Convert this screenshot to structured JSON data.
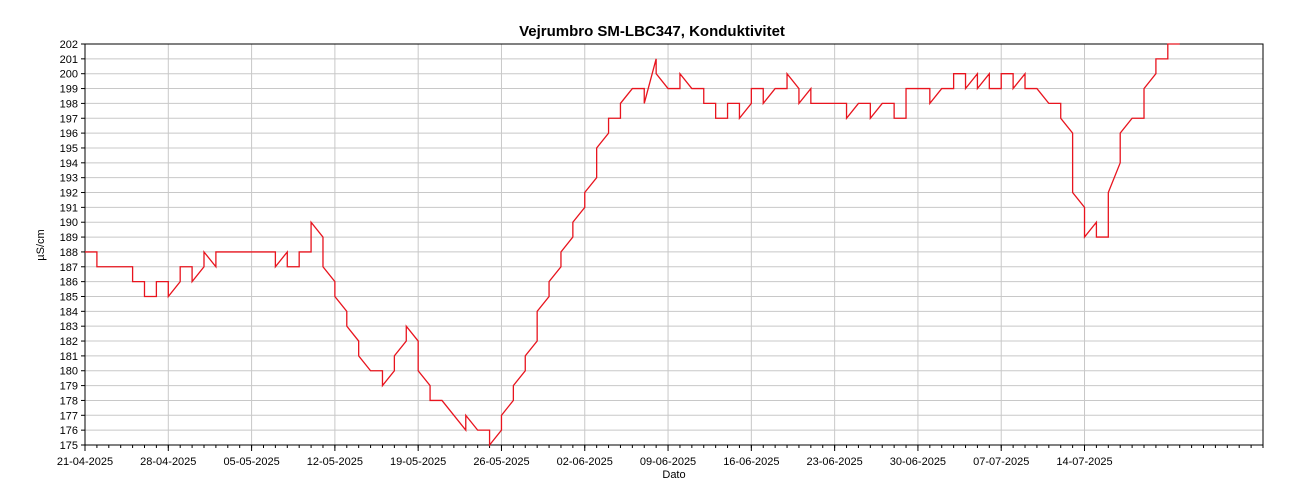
{
  "chart_data": {
    "type": "line",
    "title": "Vejrumbro SM-LBC347, Konduktivitet",
    "xlabel": "Dato",
    "ylabel": "µS/cm",
    "ylim": [
      175,
      202
    ],
    "xlim": [
      "2025-04-21",
      "2025-07-29"
    ],
    "x_ticks": [
      "21-04-2025",
      "28-04-2025",
      "05-05-2025",
      "12-05-2025",
      "19-05-2025",
      "26-05-2025",
      "02-06-2025",
      "09-06-2025",
      "16-06-2025",
      "23-06-2025",
      "30-06-2025",
      "07-07-2025",
      "14-07-2025"
    ],
    "y_ticks": [
      175,
      176,
      177,
      178,
      179,
      180,
      181,
      182,
      183,
      184,
      185,
      186,
      187,
      188,
      189,
      190,
      191,
      192,
      193,
      194,
      195,
      196,
      197,
      198,
      199,
      200,
      201,
      202
    ],
    "grid": true,
    "line_color": "#e8141e",
    "series": [
      {
        "points": [
          [
            "2025-04-21",
            188
          ],
          [
            "2025-04-22",
            188
          ],
          [
            "2025-04-22",
            187
          ],
          [
            "2025-04-24",
            187
          ],
          [
            "2025-04-25",
            187
          ],
          [
            "2025-04-25",
            186
          ],
          [
            "2025-04-26",
            186
          ],
          [
            "2025-04-26",
            185
          ],
          [
            "2025-04-27",
            185
          ],
          [
            "2025-04-27",
            186
          ],
          [
            "2025-04-28",
            186
          ],
          [
            "2025-04-28",
            185
          ],
          [
            "2025-04-29",
            186
          ],
          [
            "2025-04-29",
            187
          ],
          [
            "2025-04-30",
            187
          ],
          [
            "2025-04-30",
            186
          ],
          [
            "2025-05-01",
            187
          ],
          [
            "2025-05-01",
            188
          ],
          [
            "2025-05-02",
            187
          ],
          [
            "2025-05-02",
            188
          ],
          [
            "2025-05-05",
            188
          ],
          [
            "2025-05-07",
            188
          ],
          [
            "2025-05-07",
            187
          ],
          [
            "2025-05-08",
            188
          ],
          [
            "2025-05-08",
            187
          ],
          [
            "2025-05-09",
            187
          ],
          [
            "2025-05-09",
            188
          ],
          [
            "2025-05-10",
            188
          ],
          [
            "2025-05-10",
            190
          ],
          [
            "2025-05-11",
            189
          ],
          [
            "2025-05-11",
            188
          ],
          [
            "2025-05-11",
            187
          ],
          [
            "2025-05-12",
            186
          ],
          [
            "2025-05-12",
            185
          ],
          [
            "2025-05-13",
            184
          ],
          [
            "2025-05-13",
            183
          ],
          [
            "2025-05-14",
            182
          ],
          [
            "2025-05-14",
            181
          ],
          [
            "2025-05-15",
            180
          ],
          [
            "2025-05-16",
            180
          ],
          [
            "2025-05-16",
            179
          ],
          [
            "2025-05-17",
            180
          ],
          [
            "2025-05-17",
            181
          ],
          [
            "2025-05-18",
            182
          ],
          [
            "2025-05-18",
            183
          ],
          [
            "2025-05-19",
            182
          ],
          [
            "2025-05-19",
            181
          ],
          [
            "2025-05-19",
            180
          ],
          [
            "2025-05-20",
            179
          ],
          [
            "2025-05-20",
            178
          ],
          [
            "2025-05-21",
            178
          ],
          [
            "2025-05-22",
            177
          ],
          [
            "2025-05-23",
            176
          ],
          [
            "2025-05-23",
            177
          ],
          [
            "2025-05-24",
            176
          ],
          [
            "2025-05-25",
            176
          ],
          [
            "2025-05-25",
            175
          ],
          [
            "2025-05-26",
            176
          ],
          [
            "2025-05-26",
            177
          ],
          [
            "2025-05-27",
            178
          ],
          [
            "2025-05-27",
            179
          ],
          [
            "2025-05-28",
            180
          ],
          [
            "2025-05-28",
            181
          ],
          [
            "2025-05-29",
            182
          ],
          [
            "2025-05-29",
            183
          ],
          [
            "2025-05-29",
            184
          ],
          [
            "2025-05-30",
            185
          ],
          [
            "2025-05-30",
            186
          ],
          [
            "2025-05-31",
            187
          ],
          [
            "2025-05-31",
            188
          ],
          [
            "2025-06-01",
            189
          ],
          [
            "2025-06-01",
            190
          ],
          [
            "2025-06-02",
            191
          ],
          [
            "2025-06-02",
            192
          ],
          [
            "2025-06-03",
            193
          ],
          [
            "2025-06-03",
            194
          ],
          [
            "2025-06-03",
            195
          ],
          [
            "2025-06-04",
            196
          ],
          [
            "2025-06-04",
            197
          ],
          [
            "2025-06-05",
            197
          ],
          [
            "2025-06-05",
            198
          ],
          [
            "2025-06-06",
            199
          ],
          [
            "2025-06-07",
            199
          ],
          [
            "2025-06-07",
            198
          ],
          [
            "2025-06-08",
            201
          ],
          [
            "2025-06-08",
            200
          ],
          [
            "2025-06-09",
            199
          ],
          [
            "2025-06-10",
            199
          ],
          [
            "2025-06-10",
            200
          ],
          [
            "2025-06-11",
            199
          ],
          [
            "2025-06-12",
            199
          ],
          [
            "2025-06-12",
            198
          ],
          [
            "2025-06-13",
            198
          ],
          [
            "2025-06-13",
            197
          ],
          [
            "2025-06-14",
            197
          ],
          [
            "2025-06-14",
            198
          ],
          [
            "2025-06-15",
            198
          ],
          [
            "2025-06-15",
            197
          ],
          [
            "2025-06-16",
            198
          ],
          [
            "2025-06-16",
            199
          ],
          [
            "2025-06-17",
            199
          ],
          [
            "2025-06-17",
            198
          ],
          [
            "2025-06-18",
            199
          ],
          [
            "2025-06-19",
            199
          ],
          [
            "2025-06-19",
            200
          ],
          [
            "2025-06-20",
            199
          ],
          [
            "2025-06-20",
            198
          ],
          [
            "2025-06-21",
            199
          ],
          [
            "2025-06-21",
            198
          ],
          [
            "2025-06-22",
            198
          ],
          [
            "2025-06-23",
            198
          ],
          [
            "2025-06-24",
            198
          ],
          [
            "2025-06-24",
            197
          ],
          [
            "2025-06-25",
            198
          ],
          [
            "2025-06-26",
            198
          ],
          [
            "2025-06-26",
            197
          ],
          [
            "2025-06-27",
            198
          ],
          [
            "2025-06-28",
            198
          ],
          [
            "2025-06-28",
            197
          ],
          [
            "2025-06-29",
            197
          ],
          [
            "2025-06-29",
            199
          ],
          [
            "2025-06-30",
            199
          ],
          [
            "2025-07-01",
            199
          ],
          [
            "2025-07-01",
            198
          ],
          [
            "2025-07-02",
            199
          ],
          [
            "2025-07-03",
            199
          ],
          [
            "2025-07-03",
            200
          ],
          [
            "2025-07-04",
            200
          ],
          [
            "2025-07-04",
            199
          ],
          [
            "2025-07-05",
            200
          ],
          [
            "2025-07-05",
            199
          ],
          [
            "2025-07-06",
            200
          ],
          [
            "2025-07-06",
            199
          ],
          [
            "2025-07-07",
            199
          ],
          [
            "2025-07-07",
            200
          ],
          [
            "2025-07-08",
            200
          ],
          [
            "2025-07-08",
            199
          ],
          [
            "2025-07-09",
            200
          ],
          [
            "2025-07-09",
            199
          ],
          [
            "2025-07-10",
            199
          ],
          [
            "2025-07-11",
            198
          ],
          [
            "2025-07-12",
            198
          ],
          [
            "2025-07-12",
            197
          ],
          [
            "2025-07-13",
            196
          ],
          [
            "2025-07-13",
            194
          ],
          [
            "2025-07-13",
            192
          ],
          [
            "2025-07-14",
            191
          ],
          [
            "2025-07-14",
            189
          ],
          [
            "2025-07-15",
            190
          ],
          [
            "2025-07-15",
            189
          ],
          [
            "2025-07-16",
            189
          ],
          [
            "2025-07-16",
            192
          ],
          [
            "2025-07-17",
            194
          ],
          [
            "2025-07-17",
            196
          ],
          [
            "2025-07-18",
            197
          ],
          [
            "2025-07-19",
            197
          ],
          [
            "2025-07-19",
            199
          ],
          [
            "2025-07-20",
            200
          ],
          [
            "2025-07-20",
            201
          ],
          [
            "2025-07-21",
            201
          ],
          [
            "2025-07-21",
            202
          ],
          [
            "2025-07-22",
            202
          ]
        ]
      }
    ]
  }
}
